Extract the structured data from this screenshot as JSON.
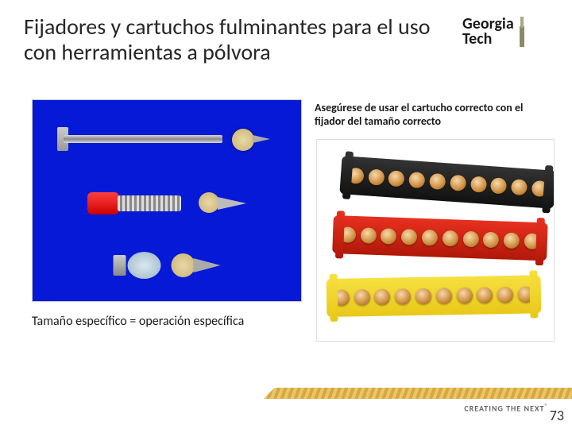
{
  "title": "Fijadores y cartuchos fulminantes para el uso con herramientas a pólvora",
  "logo": {
    "line1": "Georgia",
    "line2": "Tech"
  },
  "captionTopRight": "Asegúrese de usar el cartucho correcto con el fijador del tamaño correcto",
  "captionBottomLeft": "Tamaño específico = operación específica",
  "footerTag": "CREATING THE NEXT",
  "pageNumber": "73",
  "leftImage": {
    "background": "#0619d6",
    "fasteners": [
      {
        "type": "long-pin-with-washer"
      },
      {
        "type": "threaded-stud-red-cap"
      },
      {
        "type": "short-pin-blue-collar"
      }
    ]
  },
  "rightImage": {
    "strips": [
      {
        "color": "black",
        "hex": "#1a1a1a",
        "cartridges": 10
      },
      {
        "color": "red",
        "hex": "#d82818",
        "cartridges": 10
      },
      {
        "color": "yellow",
        "hex": "#f0d028",
        "cartridges": 10
      }
    ]
  },
  "colors": {
    "titleText": "#262626",
    "bodyText": "#1a1a1a",
    "footerStripe": "#d9a83a"
  }
}
